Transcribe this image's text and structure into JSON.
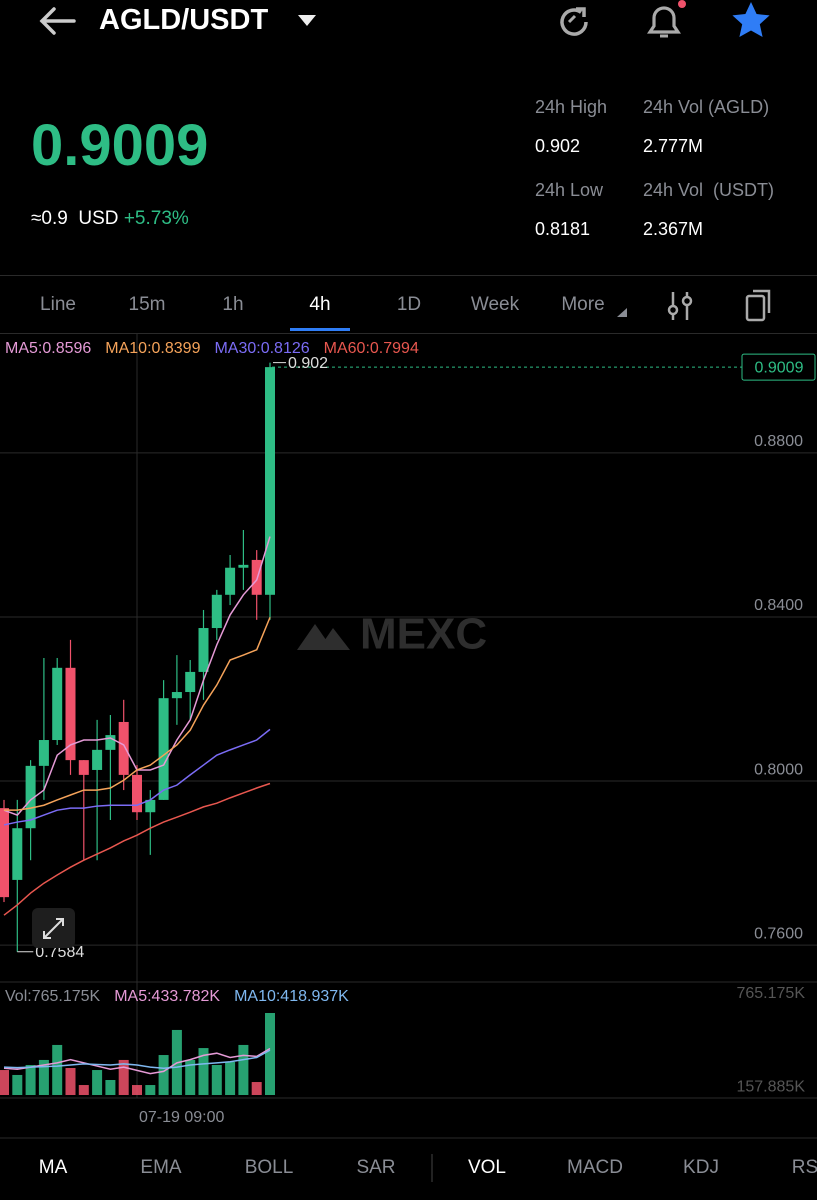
{
  "header": {
    "title": "AGLD/USDT"
  },
  "ticker": {
    "price": "0.9009",
    "approx": "≈0.9",
    "currency": "USD",
    "change": "+5.73%",
    "stats": [
      {
        "label": "24h High",
        "value": "0.902"
      },
      {
        "label": "24h Vol (AGLD)",
        "value": "2.777M"
      },
      {
        "label": "24h Low",
        "value": "0.8181"
      },
      {
        "label": "24h Vol  (USDT)",
        "value": "2.367M"
      }
    ]
  },
  "intervals": [
    "Line",
    "15m",
    "1h",
    "4h",
    "1D",
    "Week",
    "More"
  ],
  "active_interval": 3,
  "chart_data": {
    "type": "candlestick",
    "categories": [
      null,
      null,
      null,
      null,
      null,
      null,
      null,
      null,
      null,
      null,
      "07-19 09:00",
      null,
      null,
      null,
      null,
      null,
      null,
      null,
      null,
      null,
      null
    ],
    "open": [
      0.7934,
      0.7759,
      0.7885,
      0.8037,
      0.81,
      0.8276,
      0.8051,
      0.8027,
      0.8076,
      0.8144,
      0.8015,
      0.7924,
      0.7954,
      0.8202,
      0.8217,
      0.8266,
      0.8373,
      0.8454,
      0.852,
      0.8539,
      0.8454
    ],
    "high": [
      0.7954,
      0.7954,
      0.8051,
      0.83,
      0.83,
      0.8344,
      0.8051,
      0.8149,
      0.8161,
      0.8198,
      0.8039,
      0.7978,
      0.8246,
      0.8307,
      0.8295,
      0.8417,
      0.8466,
      0.8551,
      0.8612,
      0.8563,
      0.902
    ],
    "low": [
      0.7705,
      0.7584,
      0.7807,
      0.7954,
      0.8088,
      0.8015,
      0.7807,
      0.7807,
      0.7905,
      0.7978,
      0.7905,
      0.782,
      0.7954,
      0.8137,
      0.8149,
      0.8198,
      0.8344,
      0.8429,
      0.8466,
      0.8393,
      0.8393
    ],
    "close": [
      0.7717,
      0.7885,
      0.8037,
      0.81,
      0.8276,
      0.8051,
      0.8015,
      0.8076,
      0.8112,
      0.8015,
      0.7924,
      0.7954,
      0.8202,
      0.8217,
      0.8266,
      0.8373,
      0.8454,
      0.852,
      0.8527,
      0.8454,
      0.9009
    ],
    "up_color": "#2ebd85",
    "down_color": "#f0526b",
    "ma": [
      {
        "name": "MA5:0.8596",
        "color": "#e59ad6",
        "values": [
          0.7929,
          0.7917,
          0.7954,
          0.7978,
          0.8063,
          0.8088,
          0.81,
          0.81,
          0.8105,
          0.8088,
          0.8027,
          0.8027,
          0.8039,
          0.81,
          0.8149,
          0.8246,
          0.8332,
          0.8405,
          0.8454,
          0.849,
          0.8596
        ]
      },
      {
        "name": "MA10:0.8399",
        "color": "#f5a35a",
        "values": [
          0.7929,
          0.7929,
          0.7934,
          0.7941,
          0.7954,
          0.7966,
          0.7978,
          0.7978,
          0.7983,
          0.8002,
          0.8027,
          0.8039,
          0.8063,
          0.8088,
          0.8124,
          0.8185,
          0.8234,
          0.8295,
          0.8307,
          0.832,
          0.8399
        ]
      },
      {
        "name": "MA30:0.8126",
        "color": "#7b6cf5",
        "values": [
          0.7893,
          0.79,
          0.7905,
          0.7917,
          0.7929,
          0.7934,
          0.7934,
          0.7939,
          0.7941,
          0.7941,
          0.7941,
          0.7954,
          0.7978,
          0.799,
          0.8015,
          0.8039,
          0.8063,
          0.8076,
          0.8088,
          0.81,
          0.8126
        ]
      },
      {
        "name": "MA60:0.7994",
        "color": "#e8574f",
        "values": [
          0.7673,
          0.7698,
          0.7727,
          0.7751,
          0.7771,
          0.779,
          0.7807,
          0.7822,
          0.7837,
          0.7854,
          0.7868,
          0.7885,
          0.79,
          0.7912,
          0.7924,
          0.7937,
          0.7946,
          0.7959,
          0.7971,
          0.7983,
          0.7994
        ]
      }
    ],
    "ylim": [
      0.7515,
      0.908
    ],
    "yticks": [
      {
        "value": 0.88,
        "label": "0.8800"
      },
      {
        "value": 0.84,
        "label": "0.8400"
      },
      {
        "value": 0.8,
        "label": "0.8000"
      },
      {
        "value": 0.76,
        "label": "0.7600"
      }
    ],
    "grid": true,
    "last_price": 0.9009,
    "max_label": 0.902,
    "min_label": 0.7584,
    "watermark": "MEXC",
    "volume": {
      "label": "Vol:765.175K",
      "values": [
        233,
        187,
        280,
        327,
        467,
        252,
        93,
        233,
        140,
        327,
        93,
        93,
        373,
        607,
        327,
        438,
        280,
        308,
        467,
        121,
        765.175
      ],
      "ylim": [
        0,
        765.175
      ],
      "yticks": [
        {
          "value": 765.175,
          "label": "765.175K"
        },
        {
          "value": 157.885,
          "label": "157.885K"
        }
      ],
      "ma": [
        {
          "name": "MA5:433.782K",
          "color": "#e59ad6",
          "values": [
            250,
            240,
            260,
            280,
            300,
            330,
            300,
            270,
            240,
            260,
            230,
            200,
            220,
            300,
            330,
            370,
            390,
            350,
            370,
            360,
            433.782
          ]
        },
        {
          "name": "MA10:418.937K",
          "color": "#7fb8f0",
          "values": [
            260,
            255,
            260,
            265,
            270,
            280,
            290,
            285,
            280,
            290,
            280,
            260,
            250,
            260,
            280,
            290,
            300,
            310,
            330,
            350,
            418.937
          ]
        }
      ]
    }
  },
  "indicators": [
    "MA",
    "EMA",
    "BOLL",
    "SAR",
    "VOL",
    "MACD",
    "KDJ",
    "RS"
  ],
  "active_indicators": [
    0,
    4
  ]
}
